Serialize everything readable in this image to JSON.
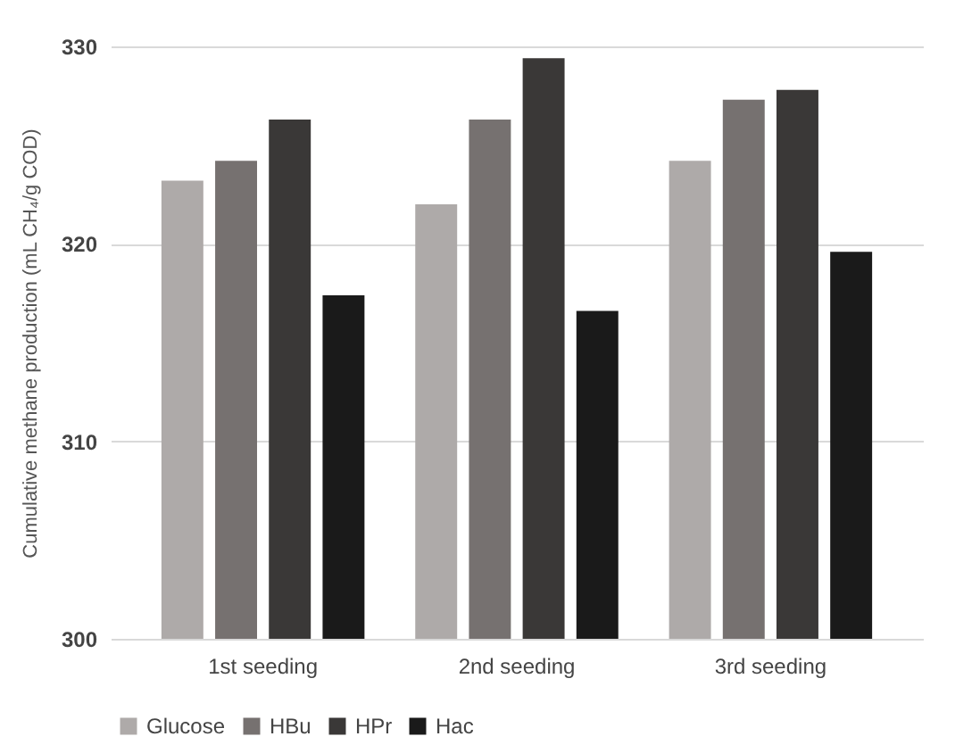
{
  "chart_data": {
    "type": "bar",
    "ylabel": "Cumulative methane production (mL CH₄/g COD)",
    "categories": [
      "1st seeding",
      "2nd seeding",
      "3rd seeding"
    ],
    "series": [
      {
        "name": "Glucose",
        "color": "#aeaaa9",
        "values": [
          323.2,
          322.0,
          324.2
        ]
      },
      {
        "name": "HBu",
        "color": "#767170",
        "values": [
          324.2,
          326.3,
          327.3
        ]
      },
      {
        "name": "HPr",
        "color": "#3a3837",
        "values": [
          326.3,
          329.4,
          327.8
        ]
      },
      {
        "name": "Hac",
        "color": "#1a1a1a",
        "values": [
          317.4,
          316.6,
          319.6
        ]
      }
    ],
    "ylim": [
      300,
      330
    ],
    "yticks": [
      300,
      310,
      320,
      330
    ],
    "grid": "y",
    "legend": "bottom"
  }
}
